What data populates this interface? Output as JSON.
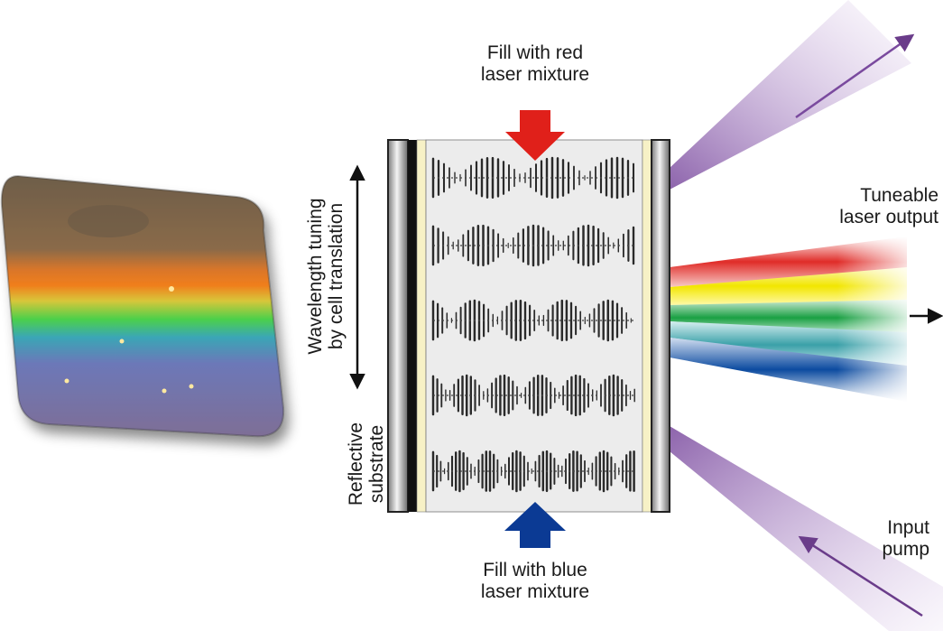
{
  "labels": {
    "fill_red": [
      "Fill with red",
      "laser mixture"
    ],
    "fill_blue": [
      "Fill with blue",
      "laser mixture"
    ],
    "tuning": [
      "Wavelength tuning",
      "by cell translation"
    ],
    "substrate": [
      "Reflective",
      "substrate"
    ],
    "output": [
      "Tuneable",
      "laser output"
    ],
    "pump": [
      "Input",
      "pump"
    ]
  },
  "colors": {
    "red_arrow": "#e0201a",
    "blue_arrow": "#0b3a94",
    "pump_beam": "#8a5aaa",
    "cell_fill": "#ececec",
    "liner": "#f7f1c6"
  },
  "output_beam_colors": [
    "#e02c28",
    "#f2e600",
    "#1aa043",
    "#3aa0a8",
    "#0c4ba0"
  ],
  "standing_waves": 5
}
